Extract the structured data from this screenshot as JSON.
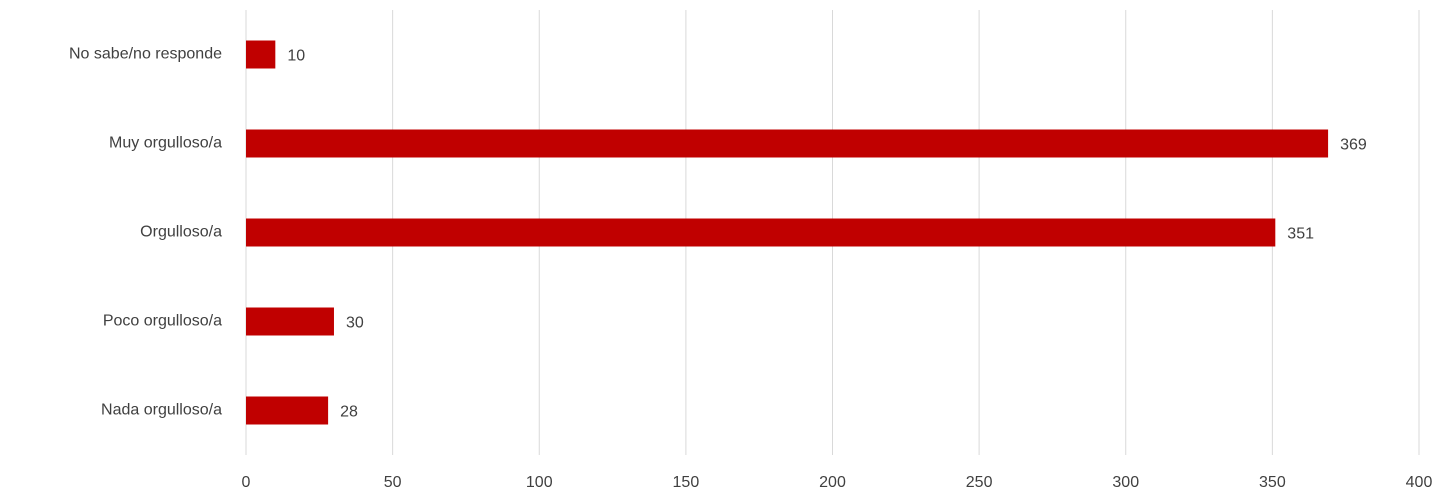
{
  "chart_data": {
    "type": "bar",
    "orientation": "horizontal",
    "categories": [
      "No sabe/no responde",
      "Muy orgulloso/a",
      "Orgulloso/a",
      "Poco orgulloso/a",
      "Nada orgulloso/a"
    ],
    "values": [
      10,
      369,
      351,
      30,
      28
    ],
    "color": "#c00000",
    "xlim": [
      0,
      400
    ],
    "xticks": [
      0,
      50,
      100,
      150,
      200,
      250,
      300,
      350,
      400
    ],
    "grid": true
  }
}
